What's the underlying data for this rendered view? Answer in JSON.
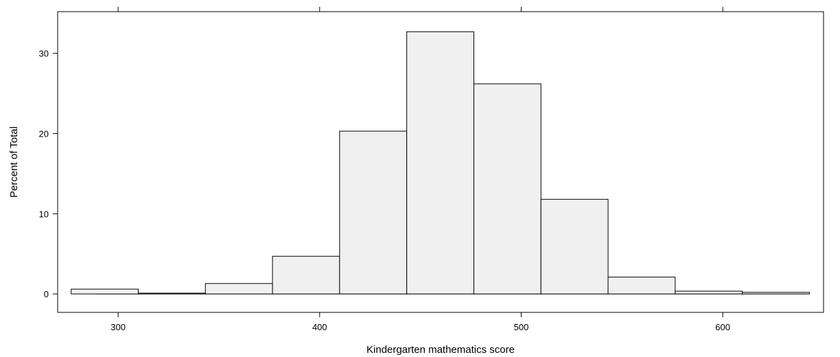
{
  "chart_data": {
    "type": "bar",
    "subtype": "histogram",
    "xlabel": "Kindergarten mathematics score",
    "ylabel": "Percent of Total",
    "xlim": [
      270,
      650
    ],
    "ylim": [
      -2.3,
      35.2
    ],
    "xticks": [
      300,
      400,
      500,
      600
    ],
    "yticks": [
      0,
      10,
      20,
      30
    ],
    "bin_edges": [
      276.7,
      310,
      343.3,
      376.6,
      409.9,
      443.2,
      476.5,
      509.8,
      543.1,
      576.4,
      609.7,
      643
    ],
    "values": [
      0.6,
      0.1,
      1.3,
      4.7,
      20.3,
      32.7,
      26.2,
      11.8,
      2.1,
      0.35,
      0.2
    ],
    "bar_fill": "#f0f0f0",
    "bar_stroke": "#000000",
    "grid": false,
    "legend": "none"
  }
}
